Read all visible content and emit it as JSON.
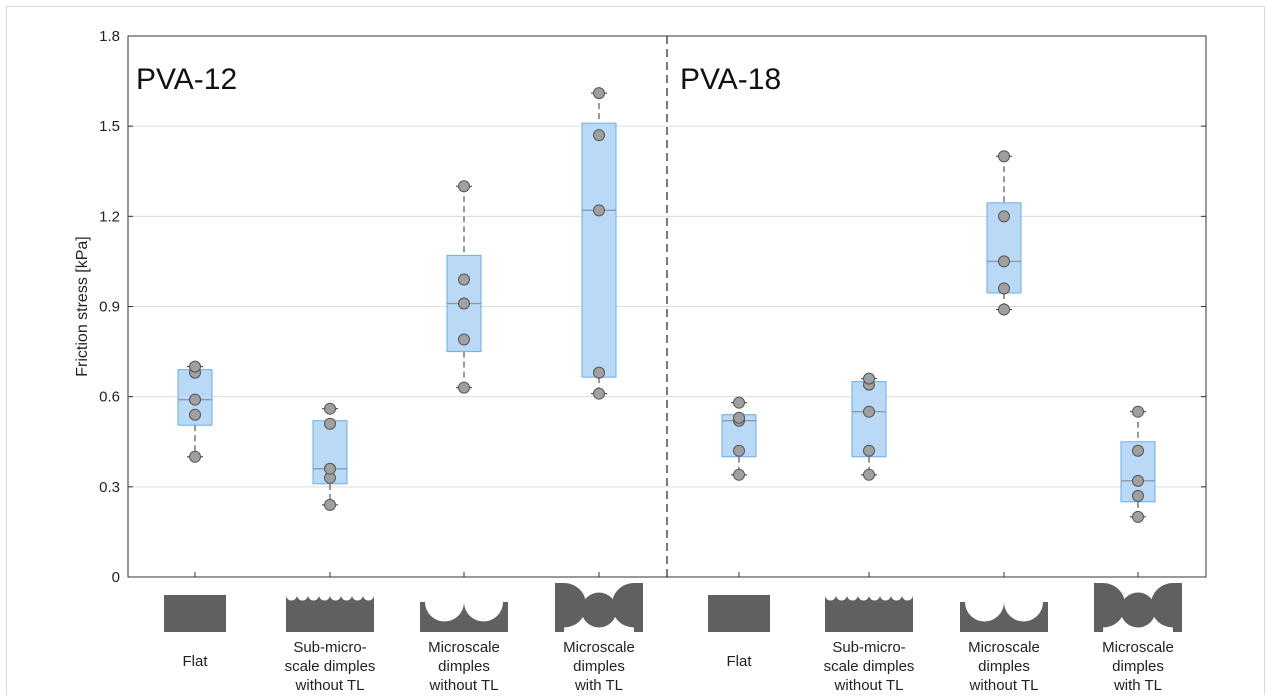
{
  "chart_data": {
    "type": "box",
    "ylabel": "Friction stress [kPa]",
    "ylim": [
      0,
      1.8
    ],
    "yticks": [
      0,
      0.3,
      0.6,
      0.9,
      1.2,
      1.5,
      1.8
    ],
    "ytick_labels": [
      "0",
      "0.3",
      "0.6",
      "0.9",
      "1.2",
      "1.5",
      "1.8"
    ],
    "grid": "horizontal",
    "colors": {
      "box_fill": "#b9d9f6",
      "box_edge": "#6aaee8",
      "point": "#a0a0a0",
      "surface": "#606060"
    },
    "panels": [
      {
        "label": "PVA-12",
        "groups": [
          {
            "lines": [
              "Flat"
            ],
            "icon": "flat",
            "min": 0.4,
            "q1": 0.505,
            "median": 0.59,
            "q3": 0.69,
            "max": 0.7,
            "points": [
              0.4,
              0.54,
              0.59,
              0.68,
              0.7
            ]
          },
          {
            "lines": [
              "Sub-micro-",
              "scale dimples",
              "without TL"
            ],
            "icon": "sub-micro",
            "min": 0.24,
            "q1": 0.31,
            "median": 0.36,
            "q3": 0.52,
            "max": 0.56,
            "points": [
              0.24,
              0.33,
              0.36,
              0.51,
              0.56
            ]
          },
          {
            "lines": [
              "Microscale",
              "dimples",
              "without TL"
            ],
            "icon": "micro",
            "min": 0.63,
            "q1": 0.75,
            "median": 0.91,
            "q3": 1.07,
            "max": 1.3,
            "points": [
              0.63,
              0.79,
              0.91,
              0.99,
              1.3
            ]
          },
          {
            "lines": [
              "Microscale",
              "dimples",
              "with TL"
            ],
            "icon": "micro-tl",
            "min": 0.61,
            "q1": 0.665,
            "median": 1.22,
            "q3": 1.51,
            "max": 1.61,
            "points": [
              0.61,
              0.68,
              1.22,
              1.47,
              1.61
            ]
          }
        ]
      },
      {
        "label": "PVA-18",
        "groups": [
          {
            "lines": [
              "Flat"
            ],
            "icon": "flat",
            "min": 0.34,
            "q1": 0.4,
            "median": 0.52,
            "q3": 0.54,
            "max": 0.58,
            "points": [
              0.34,
              0.42,
              0.52,
              0.53,
              0.58
            ]
          },
          {
            "lines": [
              "Sub-micro-",
              "scale dimples",
              "without TL"
            ],
            "icon": "sub-micro",
            "min": 0.34,
            "q1": 0.4,
            "median": 0.55,
            "q3": 0.65,
            "max": 0.66,
            "points": [
              0.34,
              0.42,
              0.55,
              0.64,
              0.66
            ]
          },
          {
            "lines": [
              "Microscale",
              "dimples",
              "without TL"
            ],
            "icon": "micro",
            "min": 0.89,
            "q1": 0.945,
            "median": 1.05,
            "q3": 1.245,
            "max": 1.4,
            "points": [
              0.89,
              0.96,
              1.05,
              1.2,
              1.4
            ]
          },
          {
            "lines": [
              "Microscale",
              "dimples",
              "with TL"
            ],
            "icon": "micro-tl",
            "min": 0.2,
            "q1": 0.25,
            "median": 0.32,
            "q3": 0.45,
            "max": 0.55,
            "points": [
              0.2,
              0.27,
              0.32,
              0.42,
              0.55
            ]
          }
        ]
      }
    ]
  }
}
